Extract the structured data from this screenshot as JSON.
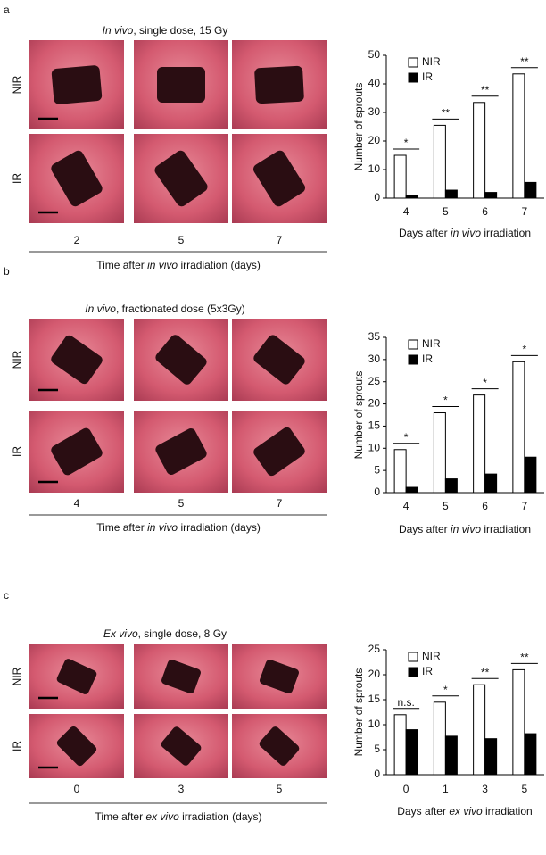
{
  "panels": [
    {
      "letter": "a",
      "title": [
        {
          "text": "In vivo",
          "italic": true
        },
        {
          "text": ", single dose, 15 Gy"
        }
      ],
      "rows": [
        "NIR",
        "IR"
      ],
      "columns": [
        "2",
        "5",
        "7"
      ],
      "xlabel": [
        {
          "text": "Time after "
        },
        {
          "text": "in vivo",
          "italic": true
        },
        {
          "text": " irradiation (days)"
        }
      ]
    },
    {
      "letter": "b",
      "title": [
        {
          "text": "In vivo",
          "italic": true
        },
        {
          "text": ", fractionated dose (5x3Gy)"
        }
      ],
      "rows": [
        "NIR",
        "IR"
      ],
      "columns": [
        "4",
        "5",
        "7"
      ],
      "xlabel": [
        {
          "text": "Time after "
        },
        {
          "text": "in vivo",
          "italic": true
        },
        {
          "text": " irradiation (days)"
        }
      ]
    },
    {
      "letter": "c",
      "title": [
        {
          "text": "Ex vivo",
          "italic": true
        },
        {
          "text": ", single dose, 8 Gy"
        }
      ],
      "rows": [
        "NIR",
        "IR"
      ],
      "columns": [
        "0",
        "3",
        "5"
      ],
      "xlabel": [
        {
          "text": "Time after "
        },
        {
          "text": "ex vivo",
          "italic": true
        },
        {
          "text": " irradiation (days)"
        }
      ]
    }
  ],
  "chart_data": [
    {
      "type": "bar",
      "categories": [
        "4",
        "5",
        "6",
        "7"
      ],
      "series": [
        {
          "name": "NIR",
          "color": "#ffffff",
          "values": [
            15,
            25.5,
            33.5,
            43.5
          ]
        },
        {
          "name": "IR",
          "color": "#000000",
          "values": [
            1,
            2.8,
            2,
            5.5
          ]
        }
      ],
      "annotations": [
        "*",
        "**",
        "**",
        "**"
      ],
      "ylabel": "Number of sprouts",
      "xlabel": [
        {
          "text": "Days after "
        },
        {
          "text": "in vivo",
          "italic": true
        },
        {
          "text": " irradiation"
        }
      ],
      "ylim": [
        0,
        50
      ],
      "yticks": [
        0,
        10,
        20,
        30,
        40,
        50
      ],
      "legend": "upper left"
    },
    {
      "type": "bar",
      "categories": [
        "4",
        "5",
        "6",
        "7"
      ],
      "series": [
        {
          "name": "NIR",
          "color": "#ffffff",
          "values": [
            9.7,
            18,
            22,
            29.5
          ]
        },
        {
          "name": "IR",
          "color": "#000000",
          "values": [
            1.2,
            3.1,
            4.2,
            8
          ]
        }
      ],
      "annotations": [
        "*",
        "*",
        "*",
        "*"
      ],
      "ylabel": "Number of sprouts",
      "xlabel": [
        {
          "text": "Days after "
        },
        {
          "text": "in vivo",
          "italic": true
        },
        {
          "text": " irradiation"
        }
      ],
      "ylim": [
        0,
        35
      ],
      "yticks": [
        0,
        5,
        10,
        15,
        20,
        25,
        30,
        35
      ],
      "legend": "upper left"
    },
    {
      "type": "bar",
      "categories": [
        "0",
        "1",
        "3",
        "5"
      ],
      "series": [
        {
          "name": "NIR",
          "color": "#ffffff",
          "values": [
            12,
            14.5,
            18,
            21
          ]
        },
        {
          "name": "IR",
          "color": "#000000",
          "values": [
            9,
            7.7,
            7.2,
            8.2
          ]
        }
      ],
      "annotations": [
        "n.s.",
        "*",
        "**",
        "**"
      ],
      "ylabel": "Number of sprouts",
      "xlabel": [
        {
          "text": "Days after "
        },
        {
          "text": "ex vivo",
          "italic": true
        },
        {
          "text": " irradiation"
        }
      ],
      "ylim": [
        0,
        25
      ],
      "yticks": [
        0,
        5,
        10,
        15,
        20,
        25
      ],
      "legend": "upper left"
    }
  ]
}
